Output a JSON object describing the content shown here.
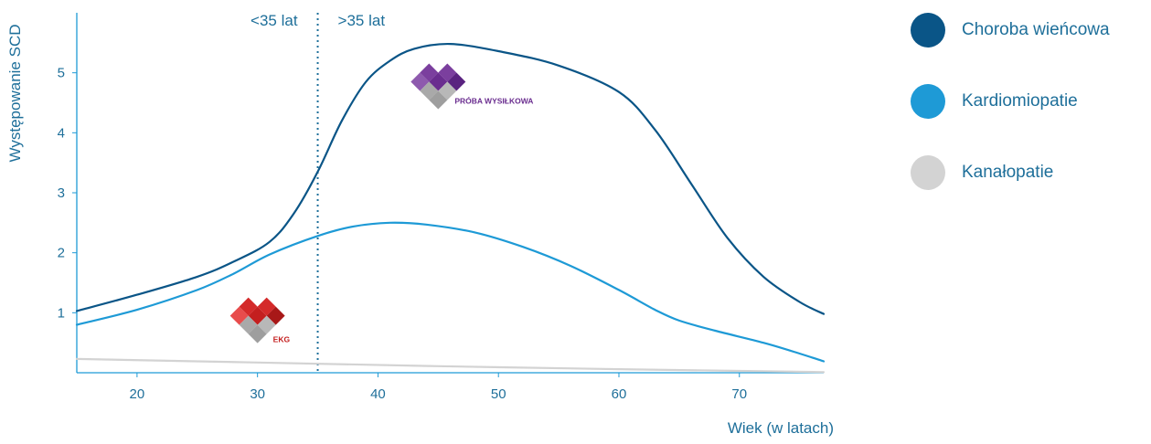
{
  "chart_data": {
    "type": "line",
    "title": "",
    "xlabel": "Wiek (w latach)",
    "ylabel": "Występowanie SCD",
    "xlim": [
      15,
      77
    ],
    "ylim": [
      0,
      6
    ],
    "x_ticks": [
      20,
      30,
      40,
      50,
      60,
      70
    ],
    "y_ticks": [
      1,
      2,
      3,
      4,
      5
    ],
    "grid": false,
    "legend_position": "right",
    "divider": {
      "x": 35,
      "left_label": "<35 lat",
      "right_label": ">35 lat"
    },
    "series": [
      {
        "name": "Choroba wieńcowa",
        "color": "#0a5587",
        "points": [
          [
            15,
            1.03
          ],
          [
            20,
            1.3
          ],
          [
            25,
            1.6
          ],
          [
            28,
            1.85
          ],
          [
            31,
            2.18
          ],
          [
            33,
            2.65
          ],
          [
            35,
            3.35
          ],
          [
            37,
            4.2
          ],
          [
            39,
            4.85
          ],
          [
            41,
            5.2
          ],
          [
            43,
            5.4
          ],
          [
            46,
            5.48
          ],
          [
            50,
            5.36
          ],
          [
            55,
            5.12
          ],
          [
            60,
            4.68
          ],
          [
            63,
            4.05
          ],
          [
            66,
            3.15
          ],
          [
            69,
            2.25
          ],
          [
            72,
            1.6
          ],
          [
            75,
            1.18
          ],
          [
            77,
            0.98
          ]
        ]
      },
      {
        "name": "Kardiomiopatie",
        "color": "#1e9ad6",
        "points": [
          [
            15,
            0.8
          ],
          [
            20,
            1.05
          ],
          [
            25,
            1.38
          ],
          [
            28,
            1.65
          ],
          [
            31,
            1.97
          ],
          [
            35,
            2.28
          ],
          [
            38,
            2.44
          ],
          [
            41,
            2.5
          ],
          [
            44,
            2.47
          ],
          [
            48,
            2.34
          ],
          [
            52,
            2.1
          ],
          [
            56,
            1.78
          ],
          [
            60,
            1.38
          ],
          [
            63,
            1.05
          ],
          [
            65,
            0.87
          ],
          [
            68,
            0.7
          ],
          [
            72,
            0.5
          ],
          [
            75,
            0.32
          ],
          [
            77,
            0.19
          ]
        ]
      },
      {
        "name": "Kanałopatie",
        "color": "#d3d3d3",
        "points": [
          [
            15,
            0.23
          ],
          [
            30,
            0.17
          ],
          [
            45,
            0.11
          ],
          [
            60,
            0.06
          ],
          [
            70,
            0.03
          ],
          [
            77,
            0.01
          ]
        ]
      }
    ],
    "annotations": [
      {
        "label": "EKG",
        "x": 30,
        "y": 0.95,
        "colors": [
          "#e84c4c",
          "#d42a2a",
          "#c41f1f",
          "#a81818"
        ]
      },
      {
        "label": "PRÓBA WYSIŁKOWA",
        "x": 45,
        "y": 4.85,
        "colors": [
          "#8e5aae",
          "#7b3f9e",
          "#6a2d8f",
          "#5a2380"
        ]
      }
    ]
  }
}
